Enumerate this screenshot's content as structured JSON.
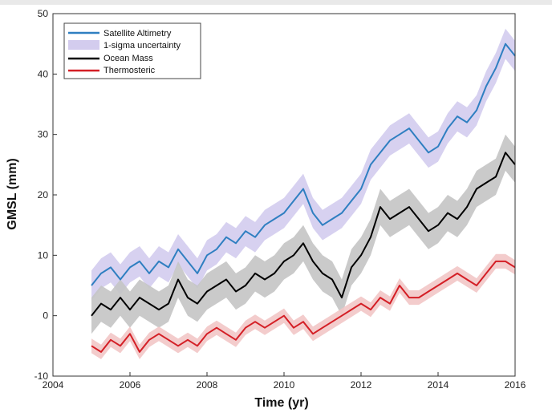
{
  "chart_data": {
    "type": "line",
    "xlabel": "Time (yr)",
    "ylabel": "GMSL (mm)",
    "xlim": [
      2004,
      2016
    ],
    "ylim": [
      -10,
      50
    ],
    "xticks": [
      2004,
      2006,
      2008,
      2010,
      2012,
      2014,
      2016
    ],
    "yticks": [
      -10,
      0,
      10,
      20,
      30,
      40,
      50
    ],
    "grid": false,
    "legend_position": "top-left",
    "legend": [
      "Satellite Altimetry",
      "1-sigma uncertainty",
      "Ocean Mass",
      "Thermosteric"
    ],
    "colors": {
      "altimetry": "#2f7fc1",
      "altimetry_band": "#d3ccee",
      "ocean_mass": "#000000",
      "ocean_mass_band": "#c4c4c4",
      "thermosteric": "#d41f26",
      "thermosteric_band": "#f2c6c6"
    },
    "series": [
      {
        "name": "Satellite Altimetry",
        "uncertainty": 2.5,
        "x": [
          2005.0,
          2005.25,
          2005.5,
          2005.75,
          2006.0,
          2006.25,
          2006.5,
          2006.75,
          2007.0,
          2007.25,
          2007.5,
          2007.75,
          2008.0,
          2008.25,
          2008.5,
          2008.75,
          2009.0,
          2009.25,
          2009.5,
          2009.75,
          2010.0,
          2010.25,
          2010.5,
          2010.75,
          2011.0,
          2011.25,
          2011.5,
          2011.75,
          2012.0,
          2012.25,
          2012.5,
          2012.75,
          2013.0,
          2013.25,
          2013.5,
          2013.75,
          2014.0,
          2014.25,
          2014.5,
          2014.75,
          2015.0,
          2015.25,
          2015.5,
          2015.75,
          2016.0
        ],
        "values": [
          5,
          7,
          8,
          6,
          8,
          9,
          7,
          9,
          8,
          11,
          9,
          7,
          10,
          11,
          13,
          12,
          14,
          13,
          15,
          16,
          17,
          19,
          21,
          17,
          15,
          16,
          17,
          19,
          21,
          25,
          27,
          29,
          30,
          31,
          29,
          27,
          28,
          31,
          33,
          32,
          34,
          38,
          41,
          45,
          43
        ]
      },
      {
        "name": "Ocean Mass",
        "uncertainty": 3.0,
        "x": [
          2005.0,
          2005.25,
          2005.5,
          2005.75,
          2006.0,
          2006.25,
          2006.5,
          2006.75,
          2007.0,
          2007.25,
          2007.5,
          2007.75,
          2008.0,
          2008.25,
          2008.5,
          2008.75,
          2009.0,
          2009.25,
          2009.5,
          2009.75,
          2010.0,
          2010.25,
          2010.5,
          2010.75,
          2011.0,
          2011.25,
          2011.5,
          2011.75,
          2012.0,
          2012.25,
          2012.5,
          2012.75,
          2013.0,
          2013.25,
          2013.5,
          2013.75,
          2014.0,
          2014.25,
          2014.5,
          2014.75,
          2015.0,
          2015.25,
          2015.5,
          2015.75,
          2016.0
        ],
        "values": [
          0,
          2,
          1,
          3,
          1,
          3,
          2,
          1,
          2,
          6,
          3,
          2,
          4,
          5,
          6,
          4,
          5,
          7,
          6,
          7,
          9,
          10,
          12,
          9,
          7,
          6,
          3,
          8,
          10,
          13,
          18,
          16,
          17,
          18,
          16,
          14,
          15,
          17,
          16,
          18,
          21,
          22,
          23,
          27,
          25
        ]
      },
      {
        "name": "Thermosteric",
        "uncertainty": 1.2,
        "x": [
          2005.0,
          2005.25,
          2005.5,
          2005.75,
          2006.0,
          2006.25,
          2006.5,
          2006.75,
          2007.0,
          2007.25,
          2007.5,
          2007.75,
          2008.0,
          2008.25,
          2008.5,
          2008.75,
          2009.0,
          2009.25,
          2009.5,
          2009.75,
          2010.0,
          2010.25,
          2010.5,
          2010.75,
          2011.0,
          2011.25,
          2011.5,
          2011.75,
          2012.0,
          2012.25,
          2012.5,
          2012.75,
          2013.0,
          2013.25,
          2013.5,
          2013.75,
          2014.0,
          2014.25,
          2014.5,
          2014.75,
          2015.0,
          2015.25,
          2015.5,
          2015.75,
          2016.0
        ],
        "values": [
          -5,
          -6,
          -4,
          -5,
          -3,
          -6,
          -4,
          -3,
          -4,
          -5,
          -4,
          -5,
          -3,
          -2,
          -3,
          -4,
          -2,
          -1,
          -2,
          -1,
          0,
          -2,
          -1,
          -3,
          -2,
          -1,
          0,
          1,
          2,
          1,
          3,
          2,
          5,
          3,
          3,
          4,
          5,
          6,
          7,
          6,
          5,
          7,
          9,
          9,
          8
        ]
      }
    ]
  }
}
